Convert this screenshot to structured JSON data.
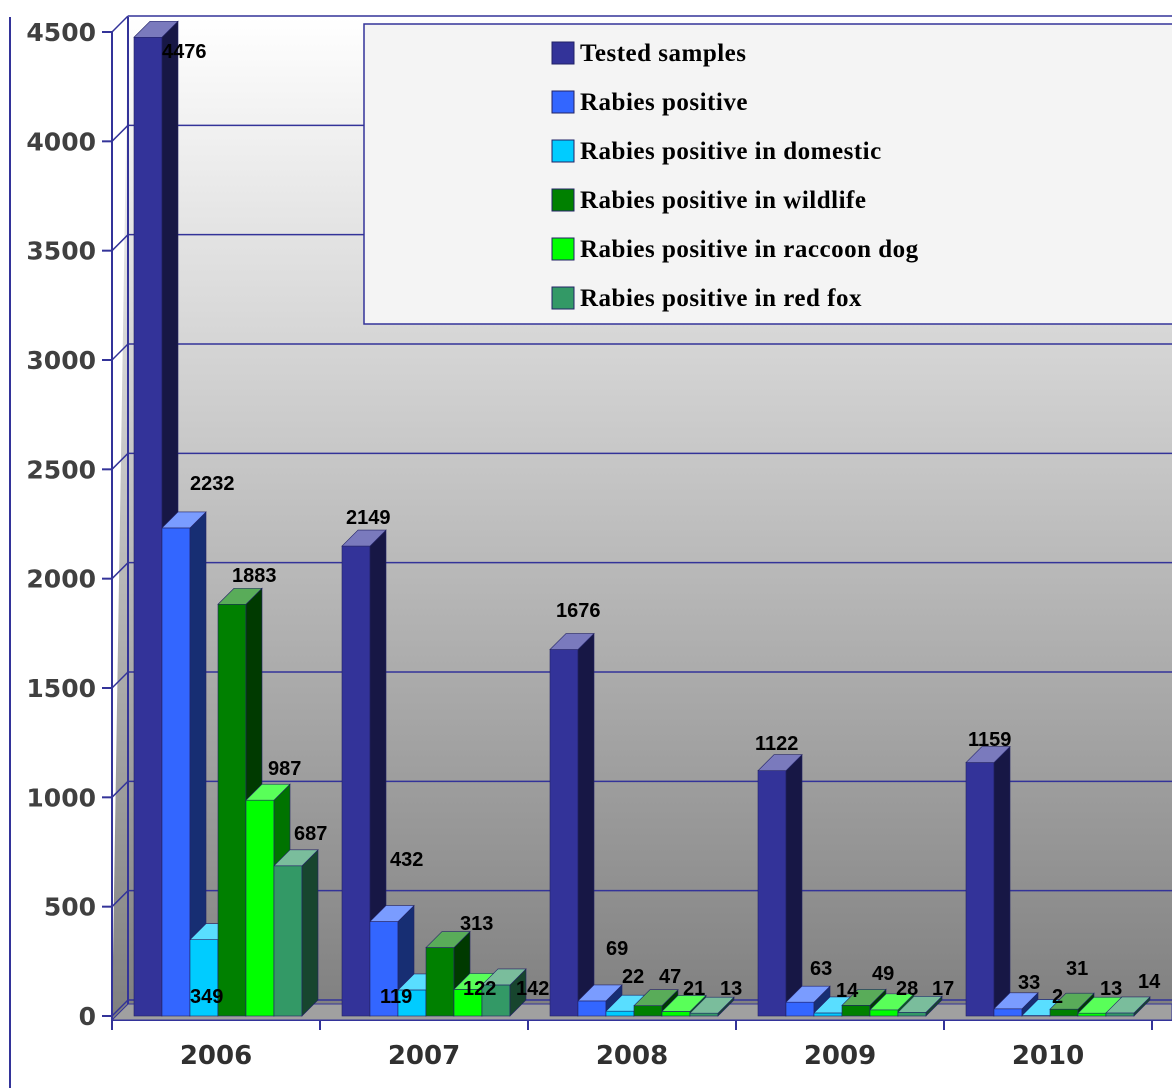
{
  "chart_data": {
    "type": "bar",
    "categories": [
      "2006",
      "2007",
      "2008",
      "2009",
      "2010"
    ],
    "series": [
      {
        "name": "Tested samples",
        "values": [
          4476,
          2149,
          1676,
          1122,
          1159
        ],
        "color": "#333399"
      },
      {
        "name": "Rabies positive",
        "values": [
          2232,
          432,
          69,
          63,
          33
        ],
        "color": "#3366ff"
      },
      {
        "name": "Rabies positive in domestic",
        "values": [
          349,
          119,
          22,
          14,
          2
        ],
        "color": "#00ccff"
      },
      {
        "name": "Rabies positive in wildlife",
        "values": [
          1883,
          313,
          47,
          49,
          31
        ],
        "color": "#008000"
      },
      {
        "name": "Rabies positive in raccoon dog",
        "values": [
          987,
          122,
          21,
          28,
          13
        ],
        "color": "#00ff00"
      },
      {
        "name": "Rabies positive in red fox",
        "values": [
          687,
          142,
          13,
          17,
          14
        ],
        "color": "#339966"
      }
    ],
    "yticks": [
      "0",
      "500",
      "1000",
      "1500",
      "2000",
      "2500",
      "3000",
      "3500",
      "4000",
      "4500"
    ],
    "ylim": [
      0,
      4500
    ],
    "grid": true,
    "legend_position": "top-right",
    "three_d": true
  }
}
